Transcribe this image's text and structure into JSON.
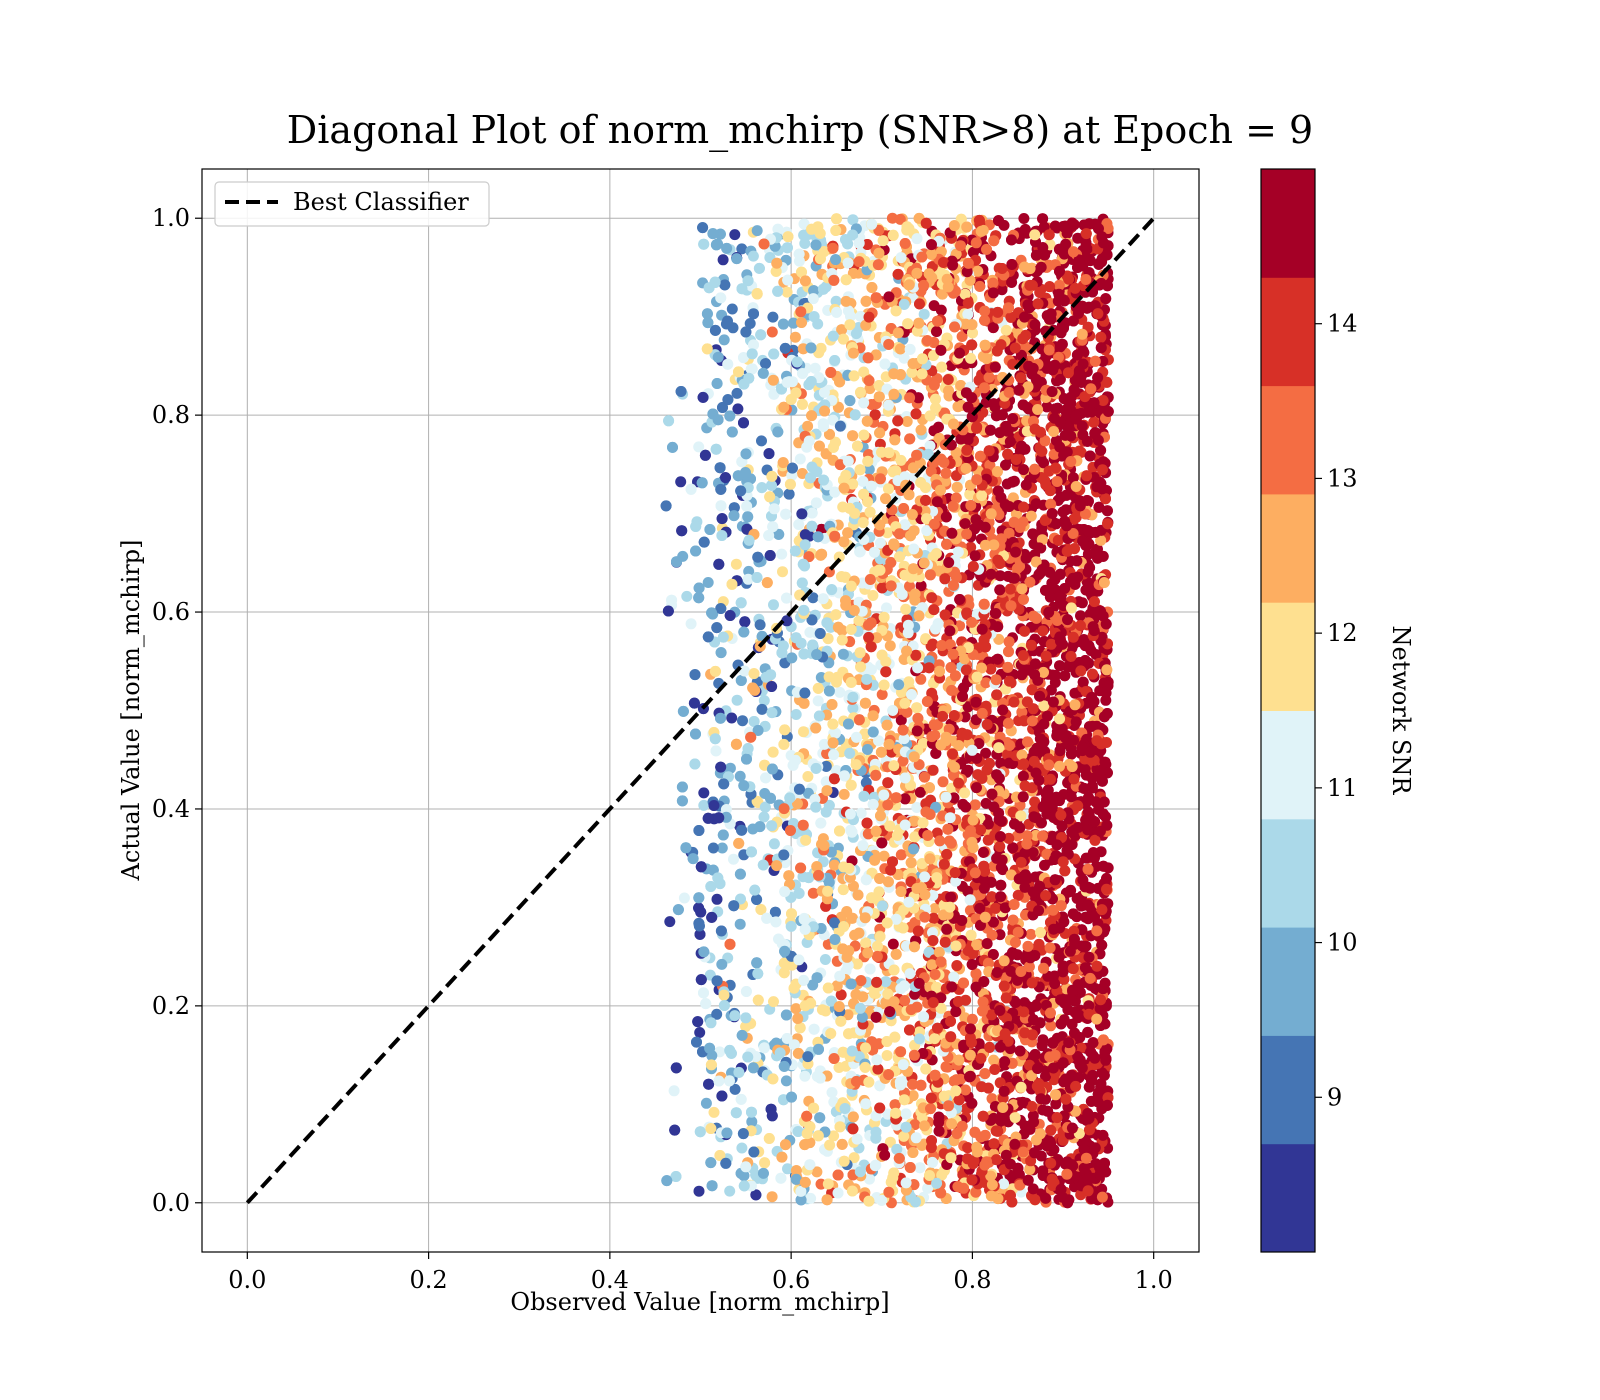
{
  "chart_data": {
    "type": "scatter",
    "title": "Diagonal Plot of norm_mchirp (SNR>8) at Epoch = 9",
    "xlabel": "Observed Value [norm_mchirp]",
    "ylabel": "Actual Value [norm_mchirp]",
    "xlim": [
      -0.05,
      1.05
    ],
    "ylim": [
      -0.05,
      1.05
    ],
    "xticks": [
      "0.0",
      "0.2",
      "0.4",
      "0.6",
      "0.8",
      "1.0"
    ],
    "yticks": [
      "0.0",
      "0.2",
      "0.4",
      "0.6",
      "0.8",
      "1.0"
    ],
    "grid": true,
    "legend": {
      "placement": "top-left",
      "entries": [
        "Best Classifier"
      ]
    },
    "reference_line": {
      "name": "Best Classifier",
      "x": [
        0.0,
        1.0
      ],
      "y": [
        0.0,
        1.0
      ],
      "style": "dashed",
      "color": "#000000"
    },
    "colorbar": {
      "label": "Network SNR",
      "range": [
        8,
        15
      ],
      "ticks": [
        "9",
        "10",
        "11",
        "12",
        "13",
        "14"
      ],
      "tick_values": [
        9,
        10,
        11,
        12,
        13,
        14
      ],
      "colors": [
        "#313695",
        "#4575b4",
        "#74add1",
        "#abd9e9",
        "#e0f3f8",
        "#fee090",
        "#fdae61",
        "#f46d43",
        "#d73027",
        "#a50026"
      ]
    },
    "series": [
      {
        "description_points": "approximately 10,000 points; observed value ranges 0.43-0.95, actual value 0.0-1.0; color encodes Network SNR — low SNR (blue) near observed 0.45-0.6, high SNR (dark red) concentrated near observed 0.85-0.95",
        "observed_range": [
          0.43,
          0.95
        ],
        "actual_range": [
          0.0,
          1.0
        ],
        "snr_vs_observed": [
          [
            0.45,
            9.0
          ],
          [
            0.55,
            10.3
          ],
          [
            0.65,
            11.6
          ],
          [
            0.75,
            12.8
          ],
          [
            0.85,
            14.2
          ],
          [
            0.92,
            15.0
          ]
        ]
      }
    ]
  }
}
